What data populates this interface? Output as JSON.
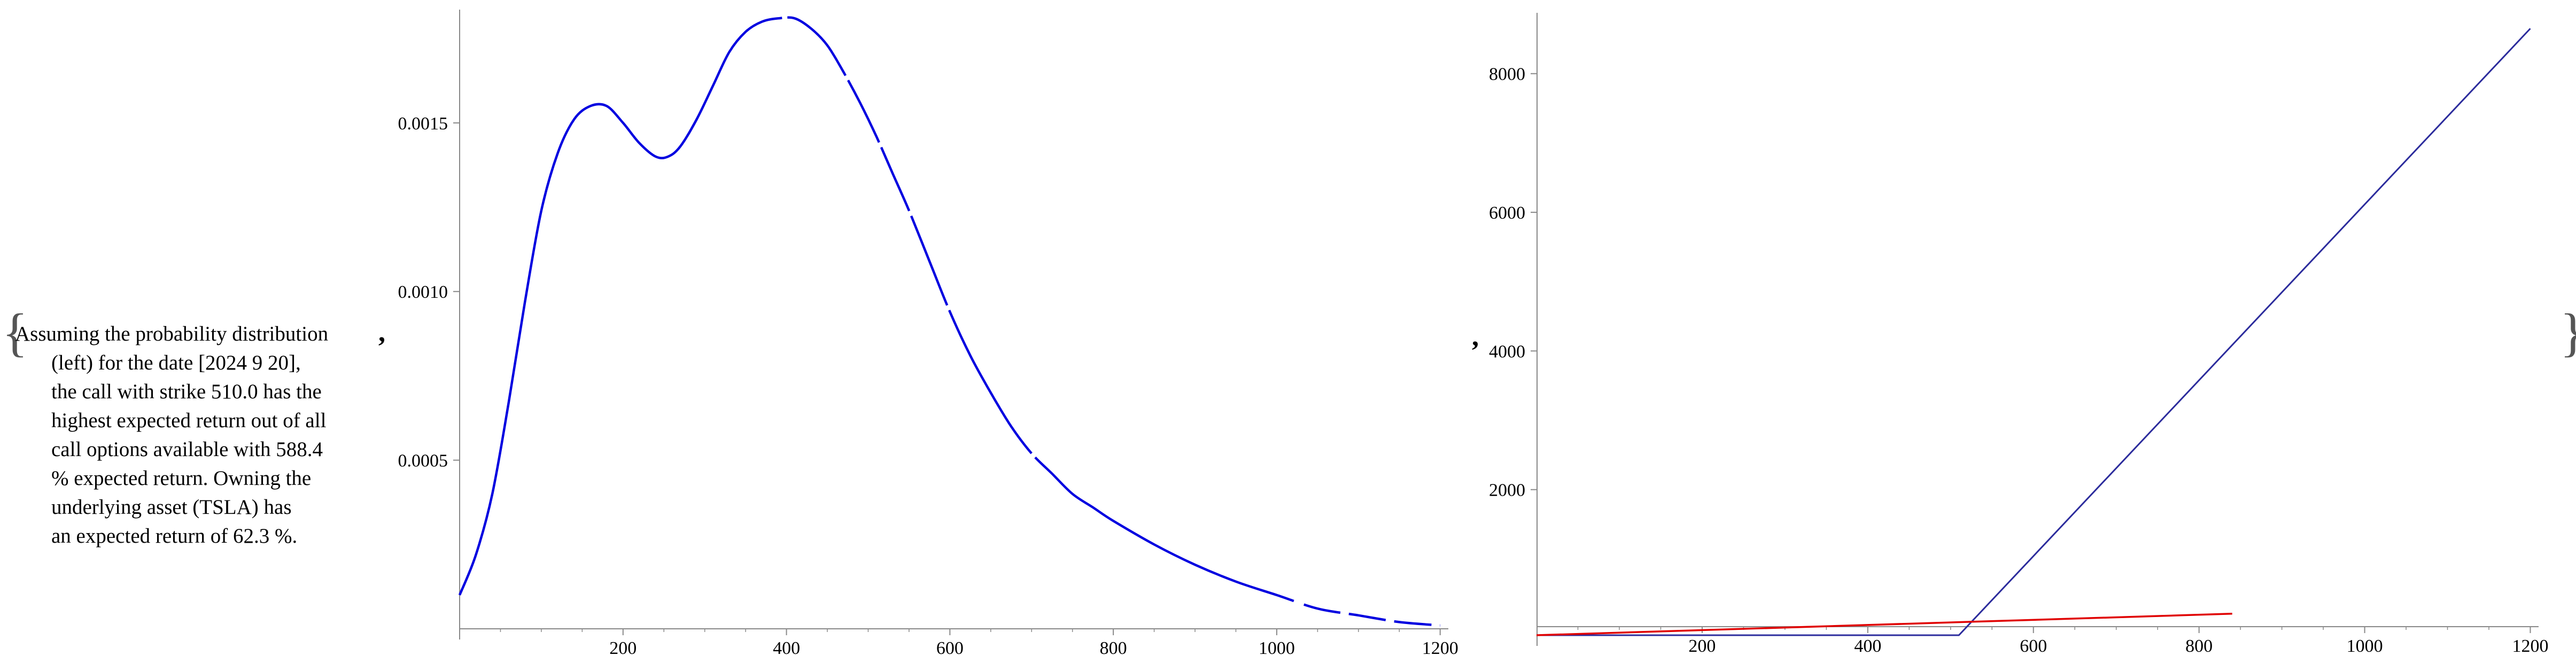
{
  "caption_lines": [
    "Assuming the probability distribution",
    "(left) for the date [2024 9 20],",
    "the call with strike 510.0 has the",
    "highest expected return out of all",
    "call options available with 588.4",
    "% expected return. Owning the",
    "underlying asset (TSLA) has",
    "an expected return of 62.3 %."
  ],
  "separators": [
    ",",
    ","
  ],
  "braces": {
    "open": "{",
    "close": "}"
  },
  "chart_data": [
    {
      "type": "line",
      "title": "",
      "xlabel": "",
      "ylabel": "",
      "xlim": [
        0,
        1210
      ],
      "ylim": [
        0,
        0.00182
      ],
      "x_ticks": [
        200,
        400,
        600,
        800,
        1000,
        1200
      ],
      "y_ticks": [
        0.0005,
        0.001,
        0.0015
      ],
      "y_tick_labels": [
        "0.0005",
        "0.0010",
        "0.0015"
      ],
      "colors": {
        "series": "#0000e0",
        "axis": "#888888"
      },
      "series": [
        {
          "x": [
            0,
            20,
            40,
            60,
            80,
            100,
            120,
            140,
            160,
            180,
            200,
            220,
            240,
            255,
            270,
            290,
            310,
            330,
            350,
            370,
            390,
            410,
            430,
            450,
            470,
            490,
            510,
            530,
            550,
            575,
            600,
            625,
            650,
            675,
            700,
            725,
            750,
            775,
            800,
            850,
            900,
            950,
            1000,
            1050,
            1100,
            1150,
            1200
          ],
          "y": [
            0.0001,
            0.00022,
            0.0004,
            0.00067,
            0.00097,
            0.00124,
            0.00141,
            0.00151,
            0.00155,
            0.00155,
            0.0015,
            0.00144,
            0.0014,
            0.0014,
            0.00143,
            0.00151,
            0.00161,
            0.00171,
            0.00177,
            0.0018,
            0.00181,
            0.00181,
            0.00178,
            0.00173,
            0.00165,
            0.00156,
            0.00146,
            0.00135,
            0.00124,
            0.00109,
            0.00094,
            0.00081,
            0.0007,
            0.0006,
            0.00052,
            0.00046,
            0.0004,
            0.00036,
            0.00032,
            0.00025,
            0.00019,
            0.00014,
            0.0001,
            6e-05,
            4e-05,
            2e-05,
            1e-05
          ]
        }
      ]
    },
    {
      "type": "line",
      "title": "",
      "xlabel": "",
      "ylabel": "",
      "xlim": [
        0,
        1210
      ],
      "ylim": [
        -100,
        8800
      ],
      "x_ticks": [
        200,
        400,
        600,
        800,
        1000,
        1200
      ],
      "y_ticks": [
        2000,
        4000,
        6000,
        8000
      ],
      "colors": {
        "call_payoff": "#2b2b9c",
        "asset": "#e00000",
        "axis": "#888888"
      },
      "series": [
        {
          "x": [
            0,
            510,
            1200
          ],
          "y": [
            -100,
            -100,
            8650
          ]
        },
        {
          "x": [
            0,
            840
          ],
          "y": [
            -100,
            210
          ]
        }
      ]
    }
  ]
}
